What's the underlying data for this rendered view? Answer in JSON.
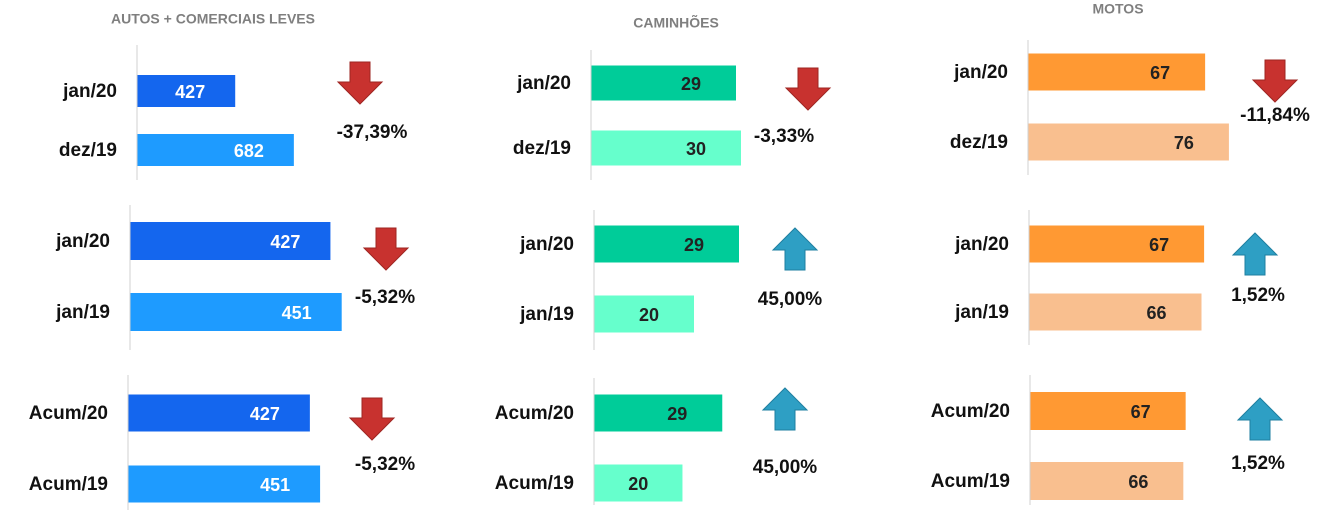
{
  "chart_data": [
    {
      "type": "hbar",
      "title": "AUTOS + COMERCIAIS LEVES",
      "categories": [
        "jan/20",
        "dez/19"
      ],
      "values": [
        427,
        682
      ],
      "colors": [
        "#1466ee",
        "#1e9bff"
      ],
      "value_text_color": "#ffffff",
      "xlim": [
        0,
        1000
      ],
      "change": {
        "value": -37.39,
        "label": "-37,39%"
      }
    },
    {
      "type": "hbar",
      "title": "CAMINHÕES",
      "categories": [
        "jan/20",
        "dez/19"
      ],
      "values": [
        29,
        30
      ],
      "colors": [
        "#00cc99",
        "#66ffcc"
      ],
      "value_text_color": "#222222",
      "xlim": [
        0,
        46
      ],
      "change": {
        "value": -3.33,
        "label": "-3,33%"
      }
    },
    {
      "type": "hbar",
      "title": "MOTOS",
      "categories": [
        "jan/20",
        "dez/19"
      ],
      "values": [
        67,
        76
      ],
      "colors": [
        "#ff9933",
        "#f9bf8f"
      ],
      "value_text_color": "#222222",
      "xlim": [
        0,
        87
      ],
      "change": {
        "value": -11.84,
        "label": "-11,84%"
      }
    },
    {
      "type": "hbar",
      "categories": [
        "jan/20",
        "jan/19"
      ],
      "values": [
        427,
        451
      ],
      "colors": [
        "#1466ee",
        "#1e9bff"
      ],
      "value_text_color": "#ffffff",
      "xlim": [
        0,
        490
      ],
      "change": {
        "value": -5.32,
        "label": "-5,32%"
      }
    },
    {
      "type": "hbar",
      "categories": [
        "jan/20",
        "jan/19"
      ],
      "values": [
        29,
        20
      ],
      "colors": [
        "#00cc99",
        "#66ffcc"
      ],
      "value_text_color": "#222222",
      "xlim": [
        0,
        46
      ],
      "change": {
        "value": 45.0,
        "label": "45,00%"
      }
    },
    {
      "type": "hbar",
      "categories": [
        "jan/20",
        "jan/19"
      ],
      "values": [
        67,
        66
      ],
      "colors": [
        "#ff9933",
        "#f9bf8f"
      ],
      "value_text_color": "#222222",
      "xlim": [
        0,
        88
      ],
      "change": {
        "value": 1.52,
        "label": "1,52%"
      }
    },
    {
      "type": "hbar",
      "categories": [
        "Acum/20",
        "Acum/19"
      ],
      "values": [
        427,
        451
      ],
      "colors": [
        "#1466ee",
        "#1e9bff"
      ],
      "value_text_color": "#ffffff",
      "xlim": [
        0,
        540
      ],
      "change": {
        "value": -5.32,
        "label": "-5,32%"
      }
    },
    {
      "type": "hbar",
      "categories": [
        "Acum/20",
        "Acum/19"
      ],
      "values": [
        29,
        20
      ],
      "colors": [
        "#00cc99",
        "#66ffcc"
      ],
      "value_text_color": "#222222",
      "xlim": [
        0,
        52
      ],
      "change": {
        "value": 45.0,
        "label": "45,00%"
      }
    },
    {
      "type": "hbar",
      "categories": [
        "Acum/20",
        "Acum/19"
      ],
      "values": [
        67,
        66
      ],
      "colors": [
        "#ff9933",
        "#f9bf8f"
      ],
      "value_text_color": "#222222",
      "xlim": [
        0,
        99
      ],
      "change": {
        "value": 1.52,
        "label": "1,52%"
      }
    }
  ]
}
